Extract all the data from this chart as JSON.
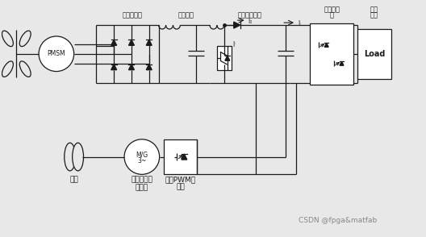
{
  "bg_color": "#e8e8e8",
  "line_color": "#1a1a1a",
  "labels": {
    "unrectified": "不可控整流",
    "filter": "滤波环节",
    "boost": "升压折波电路",
    "inverter_top": "三相逆变",
    "inverter_bot": "器",
    "load_top": "二相",
    "load_bot": "负荷",
    "flywheel": "飞轮",
    "motor": "永磁无刷直\n流电机",
    "pwm_top": "三相PWM整",
    "pwm_bot": "流器",
    "I0": "I₀",
    "IF": "Iⁱ",
    "IL": "Iₗ",
    "PMSM": "PMSM",
    "MG3_top": "M/G",
    "MG3_bot": "3~",
    "Load": "Load",
    "watermark": "CSDN @fpga&matfab"
  }
}
